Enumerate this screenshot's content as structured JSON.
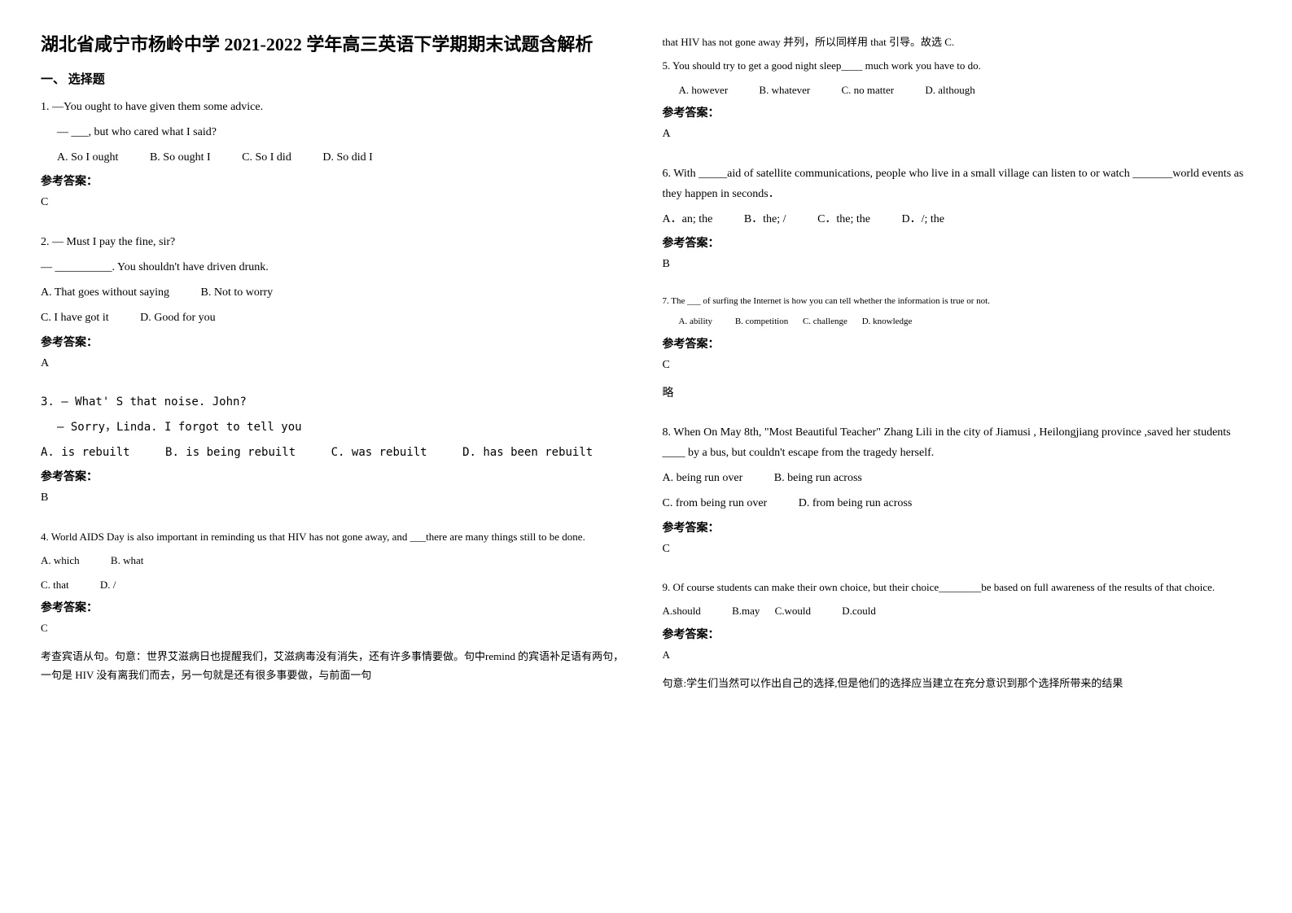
{
  "title": "湖北省咸宁市杨岭中学 2021-2022 学年高三英语下学期期末试题含解析",
  "section_one": "一、 选择题",
  "q1": {
    "line1": "1. —You ought to have given them some advice.",
    "line2": "— ___, but who cared what I said?",
    "opt_a": "A. So I ought",
    "opt_b": "B. So ought I",
    "opt_c": "C. So I did",
    "opt_d": "D. So did I",
    "answer_label": "参考答案：",
    "answer": "C"
  },
  "q2": {
    "line1": "2. — Must I pay the fine, sir?",
    "line2": "— __________. You shouldn't have driven drunk.",
    "opt_a": "A. That goes without saying",
    "opt_b": "B. Not to worry",
    "opt_c": "C. I have got it",
    "opt_d": "D. Good for you",
    "answer_label": "参考答案：",
    "answer": "A"
  },
  "q3": {
    "line1": "3.    — What' S that noise. John?",
    "line2": "— Sorry，Linda. I forgot to tell you",
    "opt_a": "A. is rebuilt",
    "opt_b": "B. is being rebuilt",
    "opt_c": "C. was rebuilt",
    "opt_d": "D. has been rebuilt",
    "answer_label": "参考答案：",
    "answer": "B"
  },
  "q4": {
    "line1": "4. World AIDS Day is also important in reminding us that HIV has not gone away, and ___there are many things still to be done.",
    "opt_a": "A. which",
    "opt_b": "B. what",
    "opt_c": "C. that",
    "opt_d": "D. /",
    "answer_label": "参考答案：",
    "answer": "C",
    "explain": "考查宾语从句。句意：世界艾滋病日也提醒我们，艾滋病毒没有消失，还有许多事情要做。句中remind 的宾语补足语有两句，一句是 HIV 没有离我们而去，另一句就是还有很多事要做，与前面一句"
  },
  "col2_top": "that HIV has not gone away 并列，所以同样用 that 引导。故选 C.",
  "q5": {
    "line1": "5. You should try to get a good night sleep____ much work you have to do.",
    "opt_a": "A. however",
    "opt_b": "B. whatever",
    "opt_c": "C. no matter",
    "opt_d": "D. although",
    "answer_label": "参考答案：",
    "answer": "A"
  },
  "q6": {
    "line1": "6. With _____aid of satellite communications, people who live in a small village can listen to or watch _______world events as they happen in seconds．",
    "opt_a": "A．an; the",
    "opt_b": "B．the; /",
    "opt_c": "C．the; the",
    "opt_d": "D．/; the",
    "answer_label": "参考答案：",
    "answer": "B"
  },
  "q7": {
    "line1": "7. The ___ of surfing the Internet is how you can tell whether the information is true or not.",
    "opt_a": "A. ability",
    "opt_b": "B. competition",
    "opt_c": "C. challenge",
    "opt_d": "D. knowledge",
    "answer_label": "参考答案：",
    "answer": "C",
    "explain": "略"
  },
  "q8": {
    "line1": "8. When On May 8th, \"Most Beautiful Teacher\" Zhang Lili in the city of Jiamusi , Heilongjiang province ,saved her students ____ by a bus, but couldn't escape from the tragedy herself.",
    "opt_a": "A. being run over",
    "opt_b": "B. being run across",
    "opt_c": "C. from being run over",
    "opt_d": "D. from being run across",
    "answer_label": "参考答案：",
    "answer": "C"
  },
  "q9": {
    "line1": "9. Of course students can make their own choice, but their choice________be based on full awareness of the results of that choice.",
    "opt_a": "A.should",
    "opt_b": "B.may",
    "opt_c": "C.would",
    "opt_d": "D.could",
    "answer_label": "参考答案：",
    "answer": "A",
    "explain": "句意:学生们当然可以作出自己的选择,但是他们的选择应当建立在充分意识到那个选择所带来的结果"
  }
}
